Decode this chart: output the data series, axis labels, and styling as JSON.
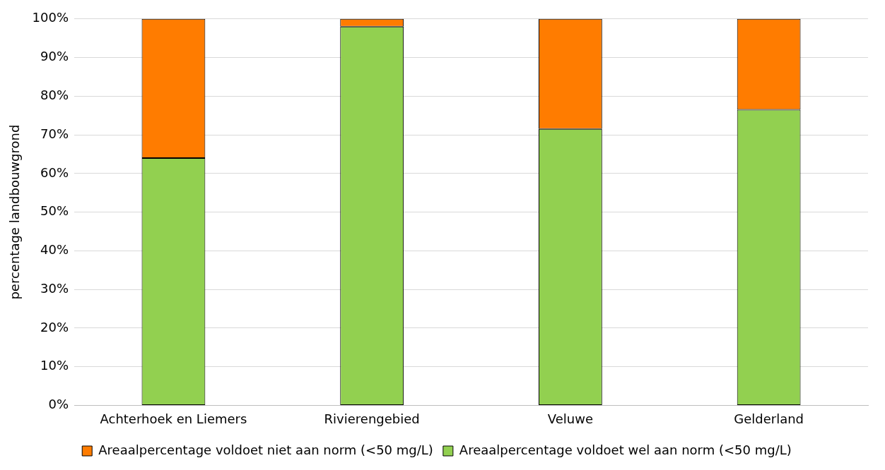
{
  "chart_data": {
    "type": "bar",
    "stacked": true,
    "ylabel": "percentage landbouwgrond",
    "categories": [
      "Achterhoek en Liemers",
      "Rivierengebied",
      "Veluwe",
      "Gelderland"
    ],
    "series": [
      {
        "name": "Areaalpercentage voldoet wel aan norm (<50 mg/L)",
        "color": "#92d050",
        "values": [
          64,
          98,
          71.5,
          76.5
        ]
      },
      {
        "name": "Areaalpercentage voldoet niet aan norm (<50 mg/L)",
        "color": "#ff7c00",
        "values": [
          36,
          2,
          28.5,
          23.5
        ]
      }
    ],
    "ylim": [
      0,
      100
    ],
    "yticks": [
      {
        "value": 0,
        "label": "0%"
      },
      {
        "value": 10,
        "label": "10%"
      },
      {
        "value": 20,
        "label": "20%"
      },
      {
        "value": 30,
        "label": "30%"
      },
      {
        "value": 40,
        "label": "40%"
      },
      {
        "value": 50,
        "label": "50%"
      },
      {
        "value": 60,
        "label": "60%"
      },
      {
        "value": 70,
        "label": "70%"
      },
      {
        "value": 80,
        "label": "80%"
      },
      {
        "value": 90,
        "label": "90%"
      },
      {
        "value": 100,
        "label": "100%"
      }
    ],
    "grid": "y",
    "legend": "bottom"
  }
}
